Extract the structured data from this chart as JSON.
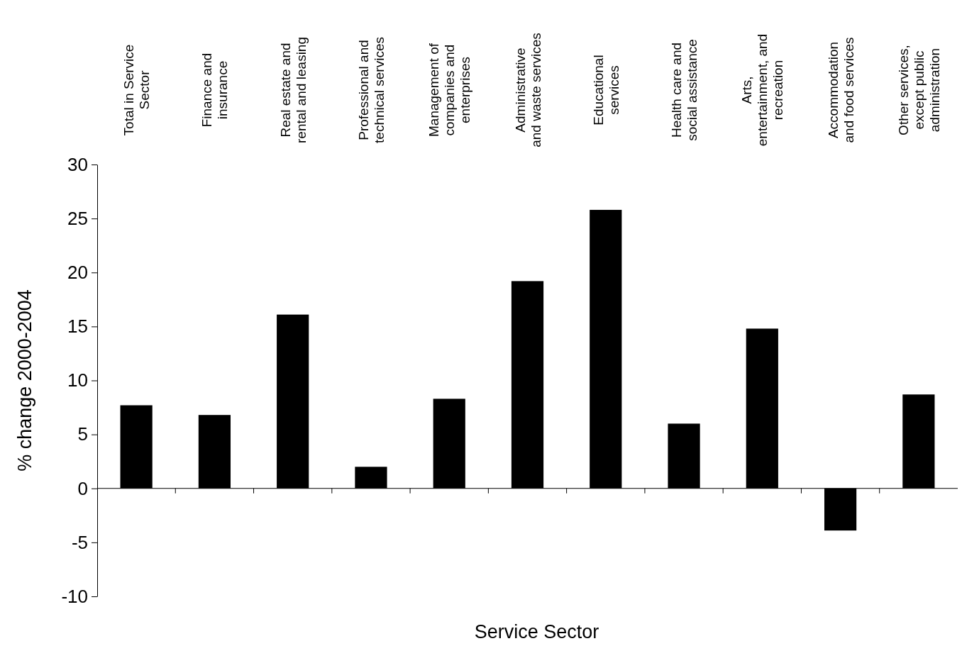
{
  "chart_data": {
    "type": "bar",
    "xlabel": "Service Sector",
    "ylabel": "% change 2000-2004",
    "categories": [
      "Total in Service\nSector",
      "Finance and\ninsurance",
      "Real estate and\nrental and leasing",
      "Professional and\ntechnical services",
      "Management of\ncompanies and\nenterprises",
      "Administrative\nand waste services",
      "Educational\nservices",
      "Health care and\nsocial assistance",
      "Arts,\nentertainment, and\nrecreation",
      "Accommodation\nand food services",
      "Other services,\nexcept public\nadministration"
    ],
    "values": [
      7.7,
      6.8,
      16.1,
      2.0,
      8.3,
      19.2,
      25.8,
      6.0,
      14.8,
      -3.9,
      8.7
    ],
    "color": "#000000",
    "ylim": [
      -10,
      30
    ],
    "yticks": [
      -10,
      -5,
      0,
      5,
      10,
      15,
      20,
      25,
      30
    ]
  }
}
